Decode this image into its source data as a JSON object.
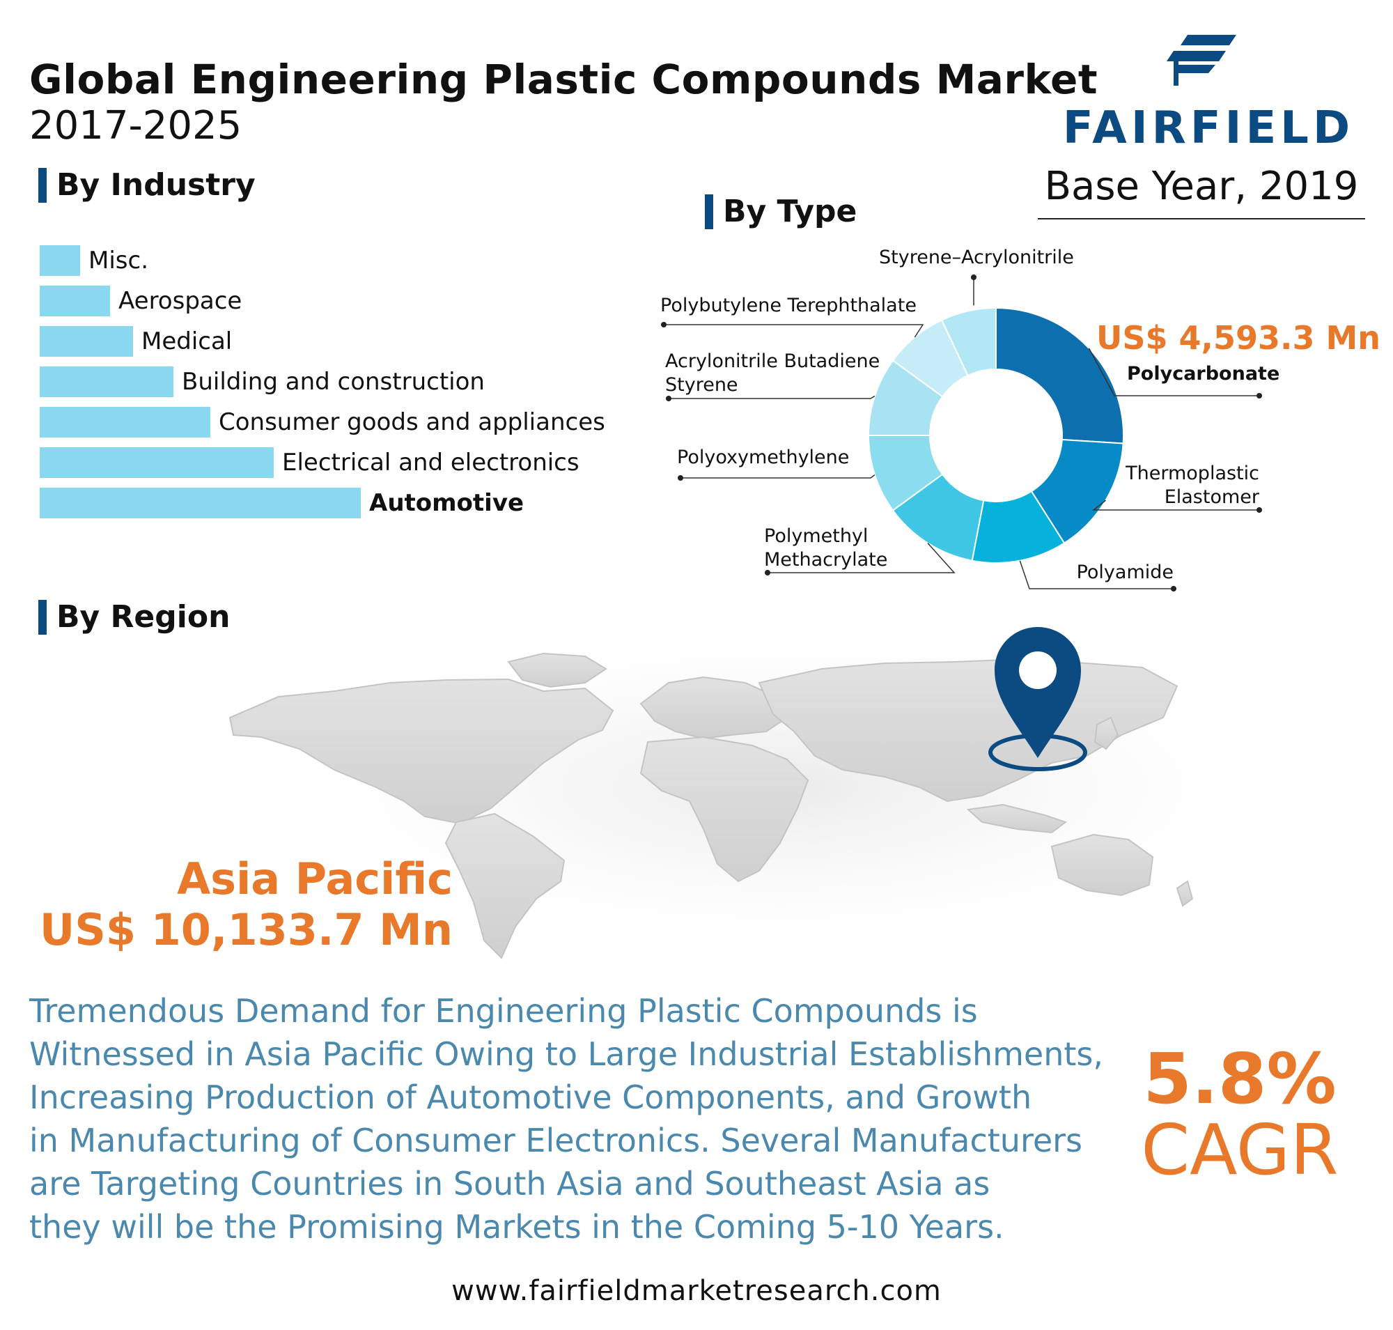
{
  "header": {
    "title": "Global Engineering Plastic Compounds Market",
    "years": "2017-2025",
    "brand": "FAIRFIELD",
    "base_year": "Base Year, 2019"
  },
  "sections": {
    "industry": "By Industry",
    "type": "By Type",
    "region": "By Region"
  },
  "chart_data": [
    {
      "type": "bar",
      "orientation": "horizontal",
      "title": "By Industry",
      "categories": [
        "Misc.",
        "Aerospace",
        "Medical",
        "Building and construction",
        "Consumer goods and appliances",
        "Electrical and electronics",
        "Automotive"
      ],
      "values": [
        12,
        21,
        28,
        40,
        51,
        70,
        96
      ],
      "highlight": "Automotive",
      "color": "#8ad8ef"
    },
    {
      "type": "pie",
      "variant": "donut",
      "title": "By Type",
      "categories": [
        "Polycarbonate",
        "Thermoplastic Elastomer",
        "Polyamide",
        "Polymethyl Methacrylate",
        "Polyoxymethylene",
        "Acrylonitrile Butadiene Styrene",
        "Polybutylene Terephthalate",
        "Styrene–Acrylonitrile"
      ],
      "label_lines": [
        [
          "Polycarbonate"
        ],
        [
          "Thermoplastic",
          "Elastomer"
        ],
        [
          "Polyamide"
        ],
        [
          "Polymethyl",
          "Methacrylate"
        ],
        [
          "Polyoxymethylene"
        ],
        [
          "Acrylonitrile Butadiene",
          "Styrene"
        ],
        [
          "Polybutylene Terephthalate"
        ],
        [
          "Styrene–Acrylonitrile"
        ]
      ],
      "values": [
        26,
        15,
        12,
        12,
        10,
        10,
        8,
        7
      ],
      "colors": [
        "#0d6fad",
        "#078bc6",
        "#06b2dc",
        "#3fc6e4",
        "#8adcef",
        "#a9e2f2",
        "#c6ecf7",
        "#b2e8f5"
      ],
      "highlight": "Polycarbonate",
      "highlight_value": "US$ 4,593.3 Mn"
    }
  ],
  "region": {
    "name": "Asia Pacific",
    "value": "US$ 10,133.7 Mn"
  },
  "summary": [
    "Tremendous Demand for Engineering Plastic Compounds is",
    "Witnessed in Asia Pacific Owing to Large Industrial Establishments,",
    "Increasing Production of Automotive Components, and Growth",
    "in Manufacturing of Consumer Electronics. Several Manufacturers",
    "are Targeting Countries in South Asia and Southeast Asia as",
    "they will be the Promising Markets in the Coming 5-10 Years."
  ],
  "cagr": {
    "value": "5.8%",
    "label": "CAGR"
  },
  "website": "www.fairfieldmarketresearch.com",
  "colors": {
    "accent": "#e8782a",
    "brand": "#0c4a82",
    "text_blue": "#4a88ad",
    "bar": "#8ad8ef"
  },
  "icons": {
    "brand_logo": "fairfield-logo",
    "location": "map-pin-icon"
  }
}
